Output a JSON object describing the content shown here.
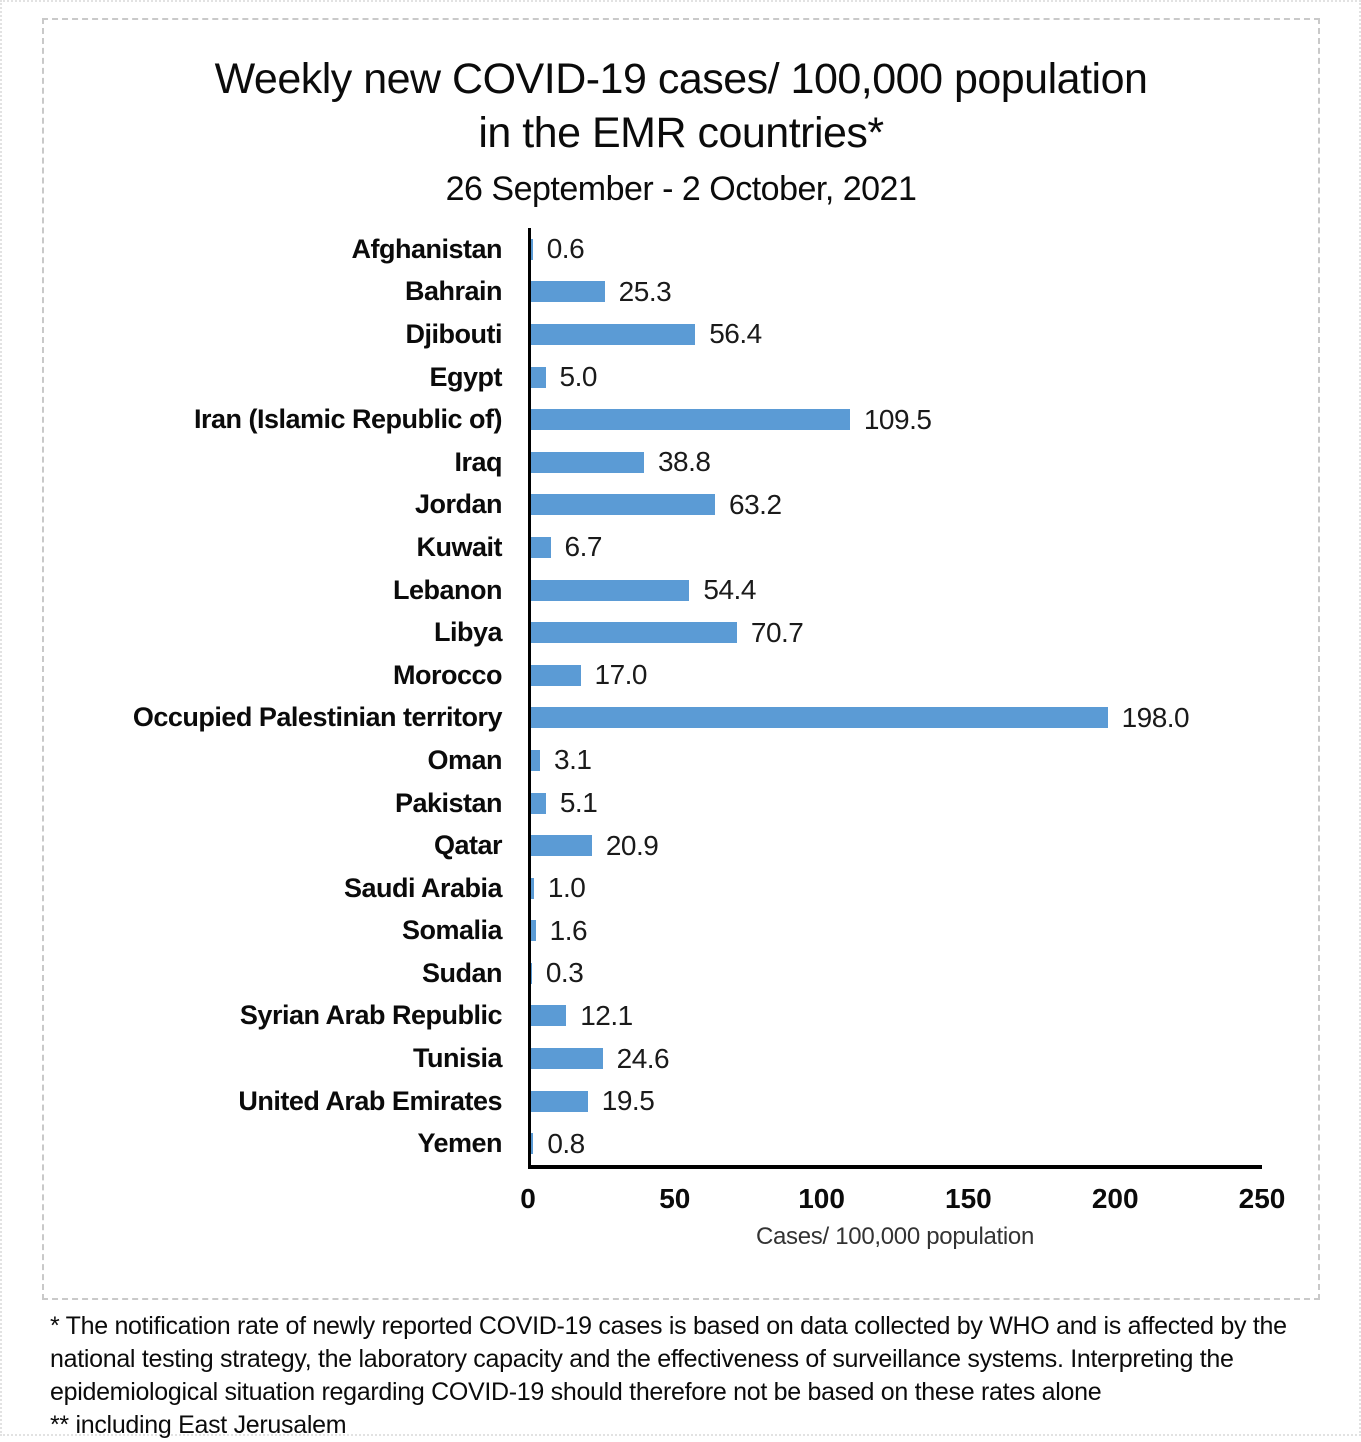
{
  "title": {
    "line1": "Weekly new COVID-19 cases/ 100,000 population",
    "line2": "in the EMR countries*",
    "subtitle": "26 September - 2 October, 2021"
  },
  "chart_data": {
    "type": "bar",
    "orientation": "horizontal",
    "title": "Weekly new COVID-19 cases/ 100,000 population in the EMR countries*",
    "subtitle": "26 September - 2 October, 2021",
    "categories": [
      "Afghanistan",
      "Bahrain",
      "Djibouti",
      "Egypt",
      "Iran (Islamic Republic of)",
      "Iraq",
      "Jordan",
      "Kuwait",
      "Lebanon",
      "Libya",
      "Morocco",
      "Occupied Palestinian territory",
      "Oman",
      "Pakistan",
      "Qatar",
      "Saudi Arabia",
      "Somalia",
      "Sudan",
      "Syrian Arab Republic",
      "Tunisia",
      "United Arab Emirates",
      "Yemen"
    ],
    "values": [
      0.6,
      25.3,
      56.4,
      5.0,
      109.5,
      38.8,
      63.2,
      6.7,
      54.4,
      70.7,
      17.0,
      198.0,
      3.1,
      5.1,
      20.9,
      1.0,
      1.6,
      0.3,
      12.1,
      24.6,
      19.5,
      0.8
    ],
    "value_labels": [
      "0.6",
      "25.3",
      "56.4",
      "5.0",
      "109.5",
      "38.8",
      "63.2",
      "6.7",
      "54.4",
      "70.7",
      "17.0",
      "198.0",
      "3.1",
      "5.1",
      "20.9",
      "1.0",
      "1.6",
      "0.3",
      "12.1",
      "24.6",
      "19.5",
      "0.8"
    ],
    "xlabel": "Cases/ 100,000 population",
    "ylabel": "",
    "xlim": [
      0,
      250
    ],
    "x_ticks": [
      0,
      50,
      100,
      150,
      200,
      250
    ],
    "grid": false,
    "legend": "none",
    "bar_color": "#5b9bd5"
  },
  "footnotes": {
    "note1": "* The notification rate of newly reported COVID-19 cases is based on data collected by WHO and is affected by the national testing strategy, the laboratory capacity and the effectiveness of surveillance systems. Interpreting the epidemiological situation regarding COVID-19 should therefore not be based on these rates alone",
    "note2": "** including East Jerusalem"
  }
}
